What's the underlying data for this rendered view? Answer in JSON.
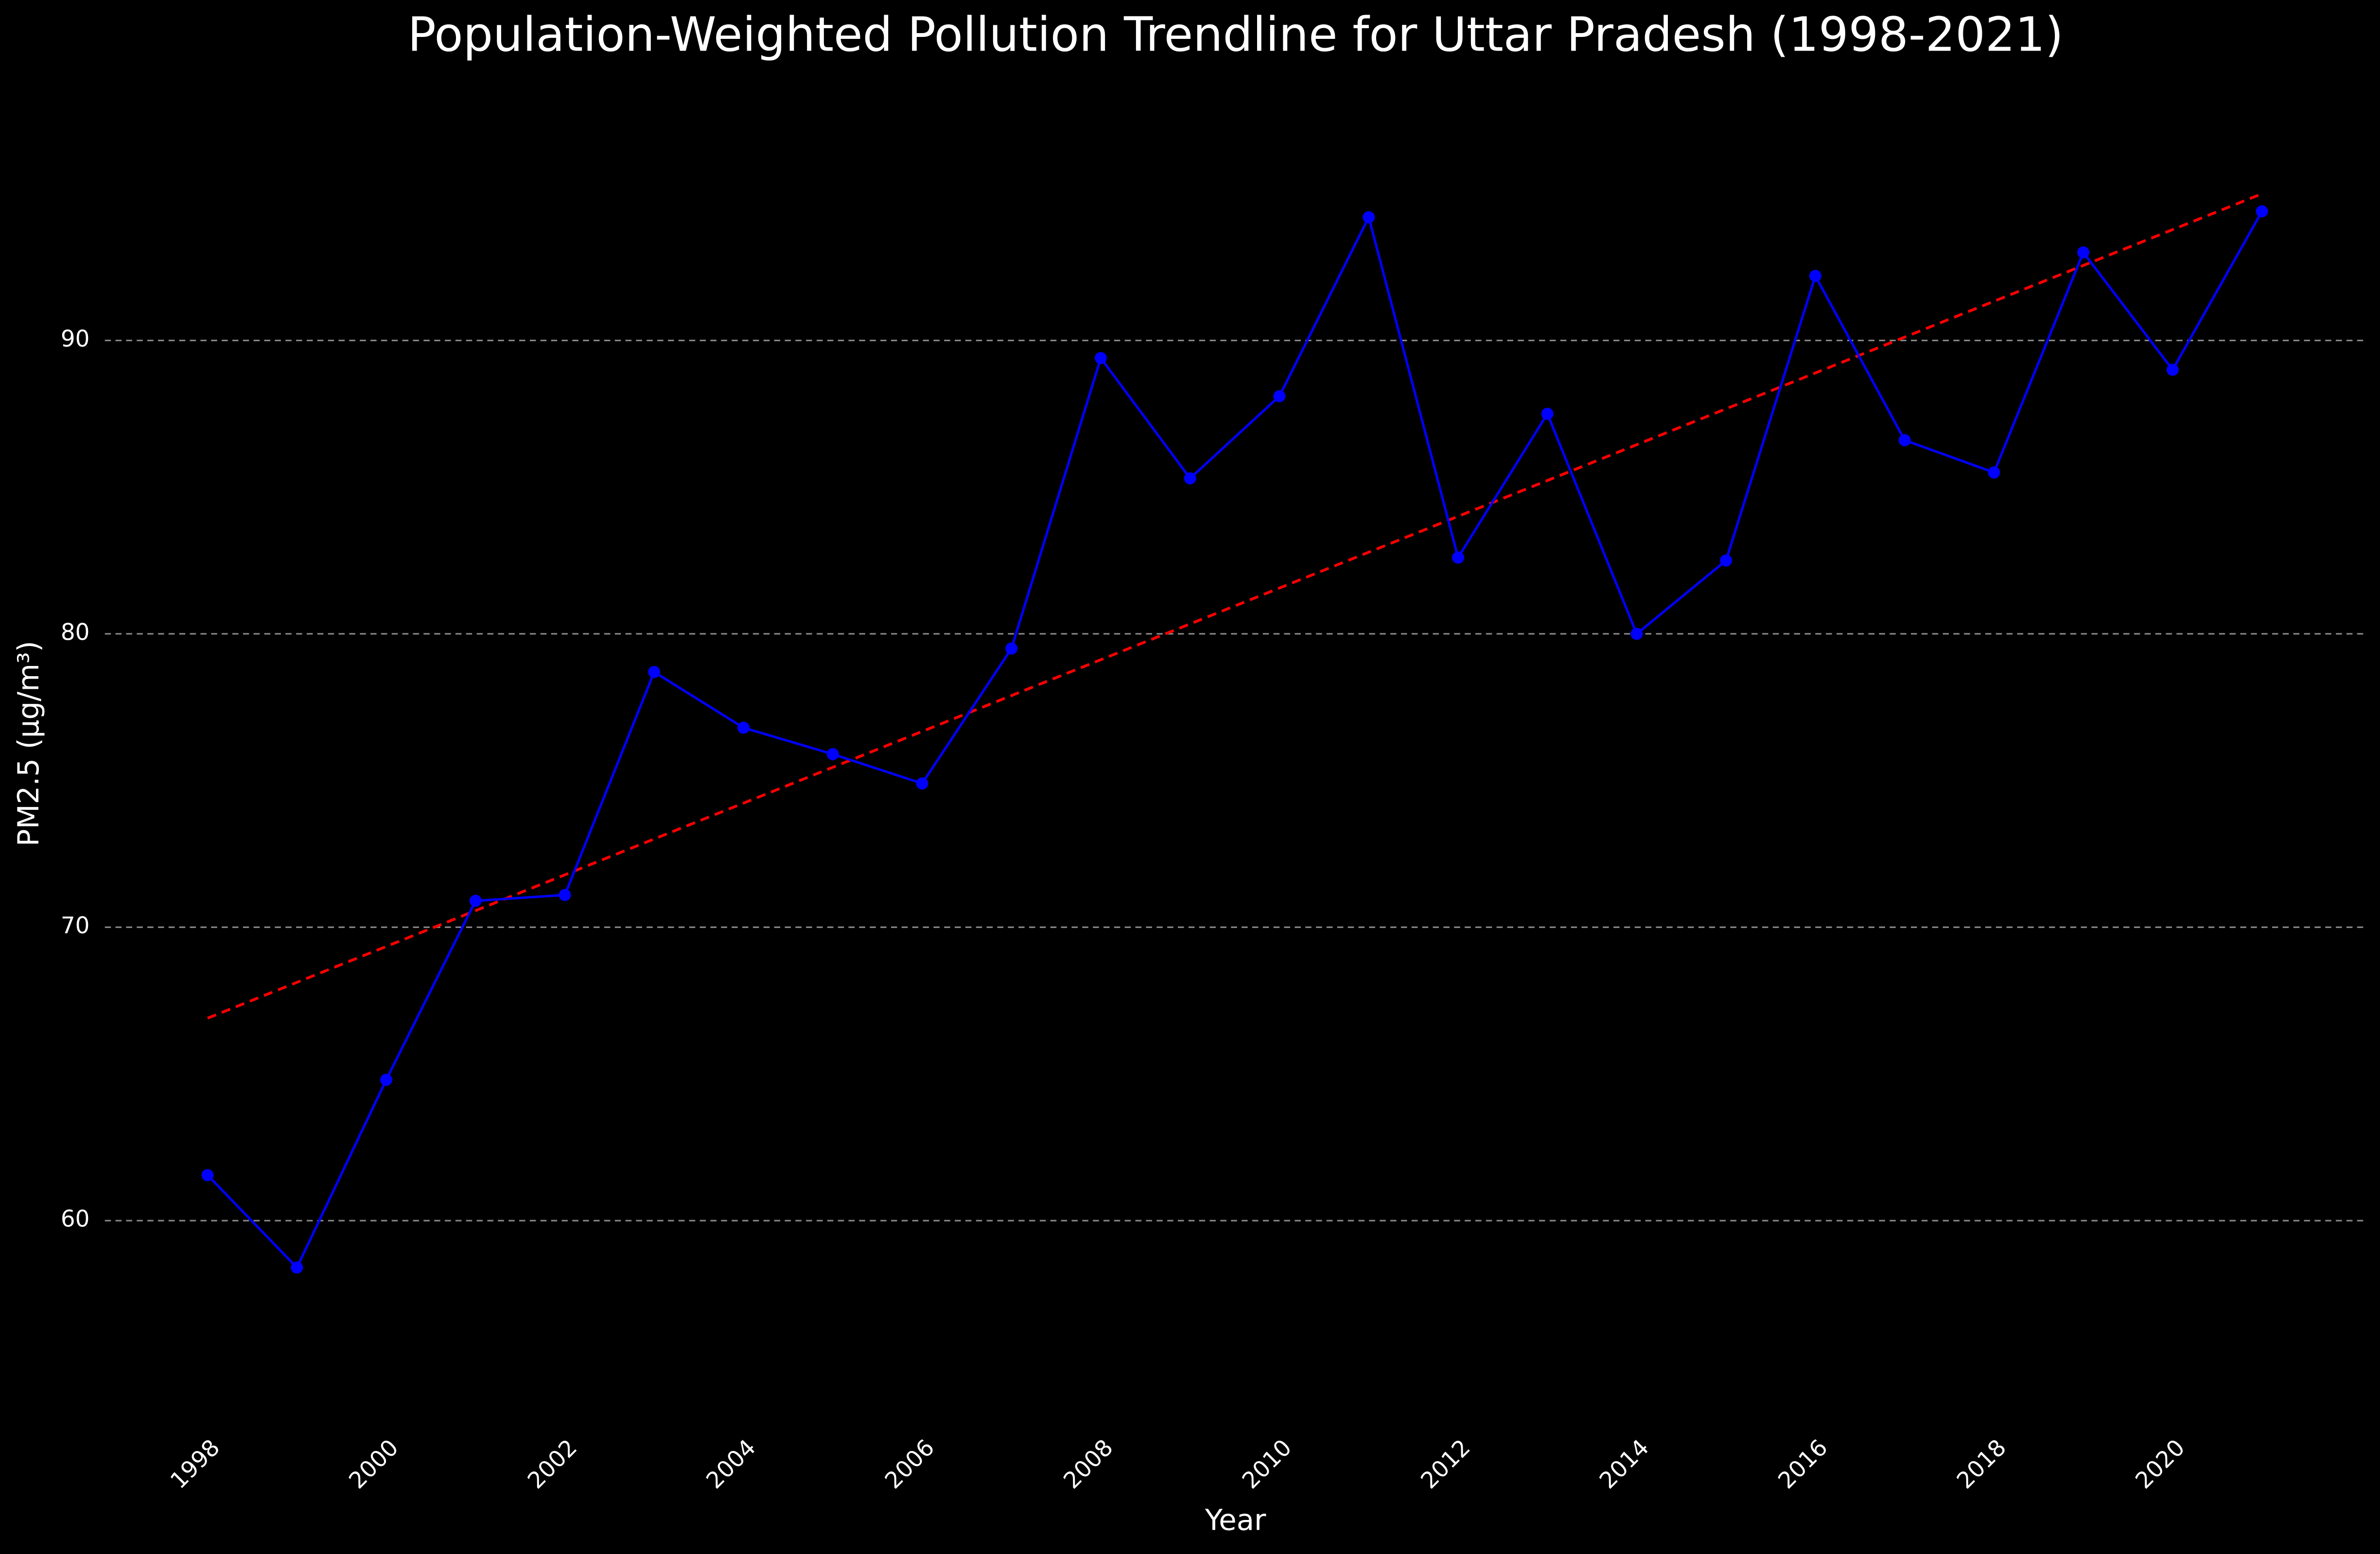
{
  "chart_data": {
    "type": "line",
    "title": "Population-Weighted Pollution Trendline for Uttar Pradesh (1998-2021)",
    "xlabel": "Year",
    "ylabel": "PM2.5 (µg/m³)",
    "x": [
      1998,
      1999,
      2000,
      2001,
      2002,
      2003,
      2004,
      2005,
      2006,
      2007,
      2008,
      2009,
      2010,
      2011,
      2012,
      2013,
      2014,
      2015,
      2016,
      2017,
      2018,
      2019,
      2020,
      2021
    ],
    "series": [
      {
        "color": "#0000ff",
        "values": [
          61.55,
          58.4,
          64.8,
          70.9,
          71.1,
          78.7,
          76.8,
          75.9,
          74.9,
          79.5,
          89.4,
          85.3,
          88.1,
          94.2,
          82.6,
          87.5,
          80.0,
          82.5,
          92.2,
          86.6,
          85.5,
          93.0,
          89.0,
          94.4
        ]
      }
    ],
    "trend": {
      "color": "#ff0000",
      "x": [
        1998,
        2021
      ],
      "values": [
        66.9,
        95.0
      ]
    },
    "xlim": [
      1996.85,
      2022.15
    ],
    "xticks": [
      1998,
      2000,
      2002,
      2004,
      2006,
      2008,
      2010,
      2012,
      2014,
      2016,
      2018,
      2020
    ],
    "ylim": [
      53.5,
      98.5
    ],
    "yticks": [
      60,
      70,
      80,
      90
    ],
    "grid": true
  }
}
